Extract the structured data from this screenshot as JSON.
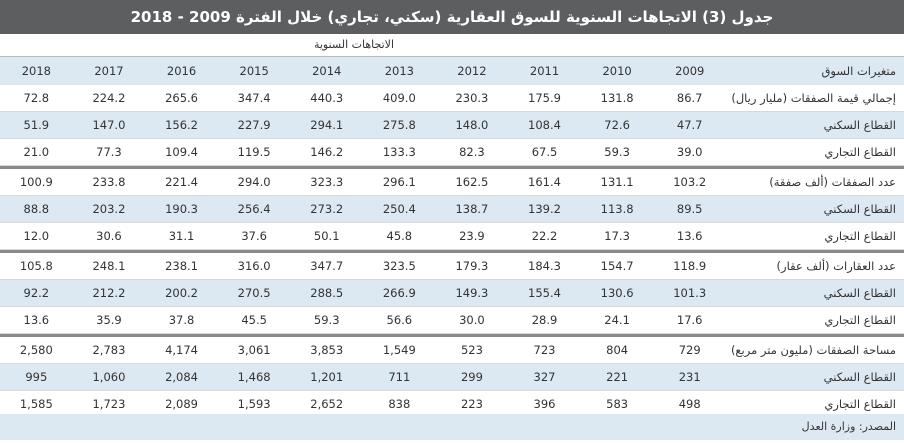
{
  "title": "جدول (3) الاتجاهات السنوية للسوق العقارية (سكني، تجاري) خلال الفترة 2009 - 2018",
  "subtitle": "الاتجاهات السنوية",
  "header": {
    "label": "متغيرات السوق",
    "years": [
      "2009",
      "2010",
      "2011",
      "2012",
      "2013",
      "2014",
      "2015",
      "2016",
      "2017",
      "2018"
    ]
  },
  "groups": [
    [
      {
        "label": "إجمالي قيمة الصفقات (مليار ريال)",
        "values": [
          "86.7",
          "131.8",
          "175.9",
          "230.3",
          "409.0",
          "440.3",
          "347.4",
          "265.6",
          "224.2",
          "72.8"
        ]
      },
      {
        "label": "القطاع السكني",
        "values": [
          "47.7",
          "72.6",
          "108.4",
          "148.0",
          "275.8",
          "294.1",
          "227.9",
          "156.2",
          "147.0",
          "51.9"
        ]
      },
      {
        "label": "القطاع التجاري",
        "values": [
          "39.0",
          "59.3",
          "67.5",
          "82.3",
          "133.3",
          "146.2",
          "119.5",
          "109.4",
          "77.3",
          "21.0"
        ]
      }
    ],
    [
      {
        "label": "عدد الصفقات (ألف صفقة)",
        "values": [
          "103.2",
          "131.1",
          "161.4",
          "162.5",
          "296.1",
          "323.3",
          "294.0",
          "221.4",
          "233.8",
          "100.9"
        ]
      },
      {
        "label": "القطاع السكني",
        "values": [
          "89.5",
          "113.8",
          "139.2",
          "138.7",
          "250.4",
          "273.2",
          "256.4",
          "190.3",
          "203.2",
          "88.8"
        ]
      },
      {
        "label": "القطاع التجاري",
        "values": [
          "13.6",
          "17.3",
          "22.2",
          "23.9",
          "45.8",
          "50.1",
          "37.6",
          "31.1",
          "30.6",
          "12.0"
        ]
      }
    ],
    [
      {
        "label": "عدد العقارات (ألف عقار)",
        "values": [
          "118.9",
          "154.7",
          "184.3",
          "179.3",
          "323.5",
          "347.7",
          "316.0",
          "238.1",
          "248.1",
          "105.8"
        ]
      },
      {
        "label": "القطاع السكني",
        "values": [
          "101.3",
          "130.6",
          "155.4",
          "149.3",
          "266.9",
          "288.5",
          "270.5",
          "200.2",
          "212.2",
          "92.2"
        ]
      },
      {
        "label": "القطاع التجاري",
        "values": [
          "17.6",
          "24.1",
          "28.9",
          "30.0",
          "56.6",
          "59.3",
          "45.5",
          "37.8",
          "35.9",
          "13.6"
        ]
      }
    ],
    [
      {
        "label": "مساحة الصفقات (مليون متر مربع)",
        "values": [
          "729",
          "804",
          "723",
          "523",
          "1,549",
          "3,853",
          "3,061",
          "4,174",
          "2,783",
          "2,580"
        ]
      },
      {
        "label": "القطاع السكني",
        "values": [
          "231",
          "221",
          "327",
          "299",
          "711",
          "1,201",
          "1,468",
          "2,084",
          "1,060",
          "995"
        ]
      },
      {
        "label": "القطاع التجاري",
        "values": [
          "498",
          "583",
          "396",
          "223",
          "838",
          "2,652",
          "1,593",
          "2,089",
          "1,723",
          "1,585"
        ]
      }
    ]
  ],
  "source": "المصدر: وزارة العدل"
}
